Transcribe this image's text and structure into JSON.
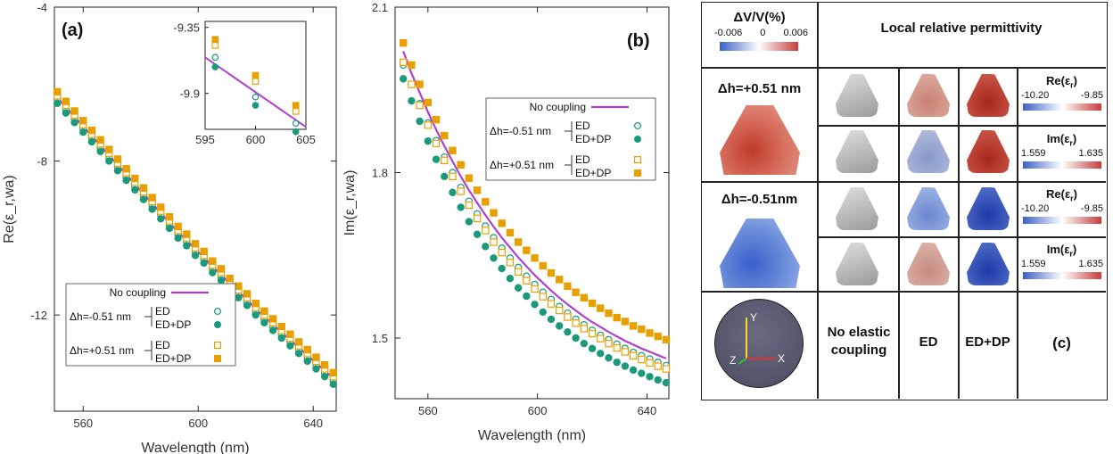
{
  "chart_data": [
    {
      "type": "line",
      "panel": "(a)",
      "xlabel": "Wavelength (nm)",
      "ylabel": "Re(ε_r,wa)",
      "xlim": [
        550,
        648
      ],
      "ylim": [
        -14.5,
        -4
      ],
      "xticks": [
        560,
        600,
        640
      ],
      "yticks": [
        -4,
        -8,
        -12
      ],
      "xticklabels": [
        "560",
        "600",
        "640"
      ],
      "yticklabels": [
        "-4",
        "-8",
        "-12"
      ],
      "legend": {
        "title": "No coupling",
        "groups": [
          "Δh=-0.51 nm",
          "Δh=+0.51 nm"
        ],
        "items": [
          "ED",
          "ED+DP",
          "ED",
          "ED+DP"
        ],
        "position": "bottom-right"
      },
      "x": [
        551,
        554,
        557,
        560,
        563,
        566,
        569,
        572,
        575,
        578,
        581,
        584,
        587,
        590,
        593,
        596,
        599,
        602,
        605,
        608,
        611,
        614,
        617,
        620,
        623,
        626,
        629,
        632,
        635,
        638,
        641,
        644,
        647
      ],
      "series": [
        {
          "name": "No coupling",
          "style": "line",
          "color": "#b040d0",
          "values": [
            -6.35,
            -6.6,
            -6.85,
            -7.1,
            -7.35,
            -7.6,
            -7.85,
            -8.1,
            -8.35,
            -8.6,
            -8.85,
            -9.1,
            -9.35,
            -9.6,
            -9.85,
            -10.05,
            -10.3,
            -10.5,
            -10.75,
            -10.95,
            -11.2,
            -11.4,
            -11.6,
            -11.85,
            -12.05,
            -12.25,
            -12.45,
            -12.65,
            -12.85,
            -13.05,
            -13.25,
            -13.45,
            -13.65
          ]
        },
        {
          "name": "ED",
          "group": "Δh=-0.51 nm",
          "style": "open-circle",
          "color": "#1a9a7a",
          "values": [
            -6.4,
            -6.65,
            -6.9,
            -7.15,
            -7.4,
            -7.65,
            -7.9,
            -8.15,
            -8.4,
            -8.65,
            -8.9,
            -9.15,
            -9.4,
            -9.65,
            -9.9,
            -10.1,
            -10.35,
            -10.55,
            -10.8,
            -11.0,
            -11.25,
            -11.45,
            -11.65,
            -11.9,
            -12.1,
            -12.3,
            -12.5,
            -12.7,
            -12.9,
            -13.1,
            -13.3,
            -13.5,
            -13.7
          ]
        },
        {
          "name": "ED+DP",
          "group": "Δh=-0.51 nm",
          "style": "filled-circle",
          "color": "#1a9a7a",
          "values": [
            -6.5,
            -6.75,
            -7.0,
            -7.25,
            -7.5,
            -7.75,
            -8.0,
            -8.25,
            -8.5,
            -8.75,
            -9.0,
            -9.25,
            -9.5,
            -9.75,
            -10.0,
            -10.2,
            -10.45,
            -10.65,
            -10.9,
            -11.1,
            -11.35,
            -11.55,
            -11.75,
            -12.0,
            -12.2,
            -12.4,
            -12.6,
            -12.8,
            -13.0,
            -13.2,
            -13.4,
            -13.6,
            -13.8
          ]
        },
        {
          "name": "ED",
          "group": "Δh=+0.51 nm",
          "style": "open-square",
          "color": "#e8a000",
          "values": [
            -6.3,
            -6.55,
            -6.8,
            -7.05,
            -7.3,
            -7.55,
            -7.8,
            -8.05,
            -8.3,
            -8.55,
            -8.8,
            -9.05,
            -9.3,
            -9.55,
            -9.8,
            -10.0,
            -10.25,
            -10.45,
            -10.7,
            -10.9,
            -11.15,
            -11.35,
            -11.55,
            -11.8,
            -12.0,
            -12.2,
            -12.4,
            -12.6,
            -12.8,
            -13.0,
            -13.2,
            -13.4,
            -13.6
          ]
        },
        {
          "name": "ED+DP",
          "group": "Δh=+0.51 nm",
          "style": "filled-square",
          "color": "#e8a000",
          "values": [
            -6.2,
            -6.45,
            -6.7,
            -6.95,
            -7.2,
            -7.45,
            -7.7,
            -7.95,
            -8.2,
            -8.45,
            -8.7,
            -8.95,
            -9.2,
            -9.45,
            -9.7,
            -9.9,
            -10.15,
            -10.35,
            -10.6,
            -10.8,
            -11.05,
            -11.25,
            -11.45,
            -11.7,
            -11.9,
            -12.1,
            -12.3,
            -12.5,
            -12.7,
            -12.9,
            -13.1,
            -13.3,
            -13.5
          ]
        }
      ],
      "inset": {
        "xlim": [
          595,
          605
        ],
        "ylim": [
          -10.2,
          -9.3
        ],
        "xticks": [
          595,
          600,
          605
        ],
        "yticks": [
          -9.35,
          -9.9
        ],
        "xticklabels": [
          "595",
          "600",
          "605"
        ],
        "yticklabels": [
          "-9.35",
          "-9.9"
        ],
        "x": [
          596,
          600,
          604
        ],
        "line": {
          "x": [
            595,
            605
          ],
          "values": [
            -9.6,
            -10.18
          ]
        },
        "series": [
          {
            "style": "open-circle",
            "color": "#1a9a7a",
            "values": [
              -9.6,
              -9.93,
              -10.15
            ]
          },
          {
            "style": "filled-circle",
            "color": "#1a9a7a",
            "values": [
              -9.68,
              -10.0,
              -10.22
            ]
          },
          {
            "style": "open-square",
            "color": "#e8a000",
            "values": [
              -9.5,
              -9.8,
              -10.05
            ]
          },
          {
            "style": "filled-square",
            "color": "#e8a000",
            "values": [
              -9.45,
              -9.75,
              -10.0
            ]
          }
        ]
      }
    },
    {
      "type": "line",
      "panel": "(b)",
      "xlabel": "Wavelength (nm)",
      "ylabel": "Im(ε_r,wa)",
      "xlim": [
        548,
        648
      ],
      "ylim": [
        1.39,
        2.1
      ],
      "xticks": [
        560,
        600,
        640
      ],
      "yticks": [
        2.1,
        1.8,
        1.5
      ],
      "xticklabels": [
        "560",
        "600",
        "640"
      ],
      "yticklabels": [
        "2.1",
        "1.8",
        "1.5"
      ],
      "legend": {
        "title": "No coupling",
        "groups": [
          "Δh=-0.51 nm",
          "Δh=+0.51 nm"
        ],
        "items": [
          "ED",
          "ED+DP",
          "ED",
          "ED+DP"
        ],
        "position": "top-right"
      },
      "x": [
        551,
        554,
        557,
        560,
        563,
        566,
        569,
        572,
        575,
        578,
        581,
        584,
        587,
        590,
        593,
        596,
        599,
        602,
        605,
        608,
        611,
        614,
        617,
        620,
        623,
        626,
        629,
        632,
        635,
        638,
        641,
        644,
        647
      ],
      "series": [
        {
          "name": "No coupling",
          "style": "line",
          "color": "#b040d0",
          "values": [
            2.02,
            1.98,
            1.945,
            1.91,
            1.878,
            1.848,
            1.82,
            1.793,
            1.768,
            1.745,
            1.723,
            1.702,
            1.682,
            1.664,
            1.646,
            1.63,
            1.614,
            1.6,
            1.586,
            1.573,
            1.561,
            1.55,
            1.539,
            1.529,
            1.52,
            1.511,
            1.503,
            1.495,
            1.488,
            1.481,
            1.475,
            1.469,
            1.463
          ]
        },
        {
          "name": "ED",
          "group": "Δh=-0.51 nm",
          "style": "open-circle",
          "color": "#1a9a7a",
          "values": [
            1.995,
            1.96,
            1.925,
            1.89,
            1.858,
            1.828,
            1.8,
            1.773,
            1.748,
            1.725,
            1.703,
            1.682,
            1.663,
            1.645,
            1.628,
            1.612,
            1.597,
            1.583,
            1.57,
            1.557,
            1.545,
            1.534,
            1.524,
            1.514,
            1.505,
            1.497,
            1.489,
            1.481,
            1.474,
            1.468,
            1.462,
            1.456,
            1.45
          ]
        },
        {
          "name": "ED+DP",
          "group": "Δh=-0.51 nm",
          "style": "filled-circle",
          "color": "#1a9a7a",
          "values": [
            1.97,
            1.93,
            1.893,
            1.857,
            1.824,
            1.793,
            1.764,
            1.737,
            1.711,
            1.688,
            1.666,
            1.645,
            1.626,
            1.608,
            1.591,
            1.576,
            1.561,
            1.547,
            1.534,
            1.522,
            1.511,
            1.5,
            1.49,
            1.481,
            1.472,
            1.464,
            1.456,
            1.449,
            1.442,
            1.436,
            1.43,
            1.424,
            1.419
          ]
        },
        {
          "name": "ED",
          "group": "Δh=+0.51 nm",
          "style": "open-square",
          "color": "#e8a000",
          "values": [
            2.0,
            1.96,
            1.922,
            1.886,
            1.853,
            1.822,
            1.793,
            1.766,
            1.741,
            1.717,
            1.695,
            1.674,
            1.655,
            1.637,
            1.62,
            1.604,
            1.589,
            1.575,
            1.562,
            1.55,
            1.538,
            1.527,
            1.517,
            1.508,
            1.499,
            1.49,
            1.482,
            1.475,
            1.468,
            1.461,
            1.455,
            1.449,
            1.444
          ]
        },
        {
          "name": "ED+DP",
          "group": "Δh=+0.51 nm",
          "style": "filled-square",
          "color": "#e8a000",
          "values": [
            2.035,
            1.995,
            1.96,
            1.927,
            1.896,
            1.867,
            1.84,
            1.814,
            1.79,
            1.768,
            1.747,
            1.727,
            1.708,
            1.691,
            1.674,
            1.659,
            1.645,
            1.631,
            1.618,
            1.606,
            1.594,
            1.583,
            1.573,
            1.563,
            1.554,
            1.545,
            1.537,
            1.53,
            1.522,
            1.516,
            1.509,
            1.503,
            1.497
          ]
        }
      ]
    }
  ],
  "panel_c": {
    "label": "(c)",
    "dv_title": "ΔV/V(%)",
    "dv_ticks": [
      "-0.006",
      "0",
      "0.006"
    ],
    "header": "Local relative permittivity",
    "row1_label": "Δh=+0.51 nm",
    "row2_label": "Δh=-0.51nm",
    "re_label": "Re(ε",
    "im_label": "Im(ε",
    "sub_r": "r",
    "close": ")",
    "re_min": "-10.20",
    "re_max": "-9.85",
    "im_min": "1.559",
    "im_max": "1.635",
    "col1": "No elastic coupling",
    "col2": "ED",
    "col3": "ED+DP",
    "axis_y": "Y",
    "axis_z": "Z",
    "axis_x": "X"
  }
}
